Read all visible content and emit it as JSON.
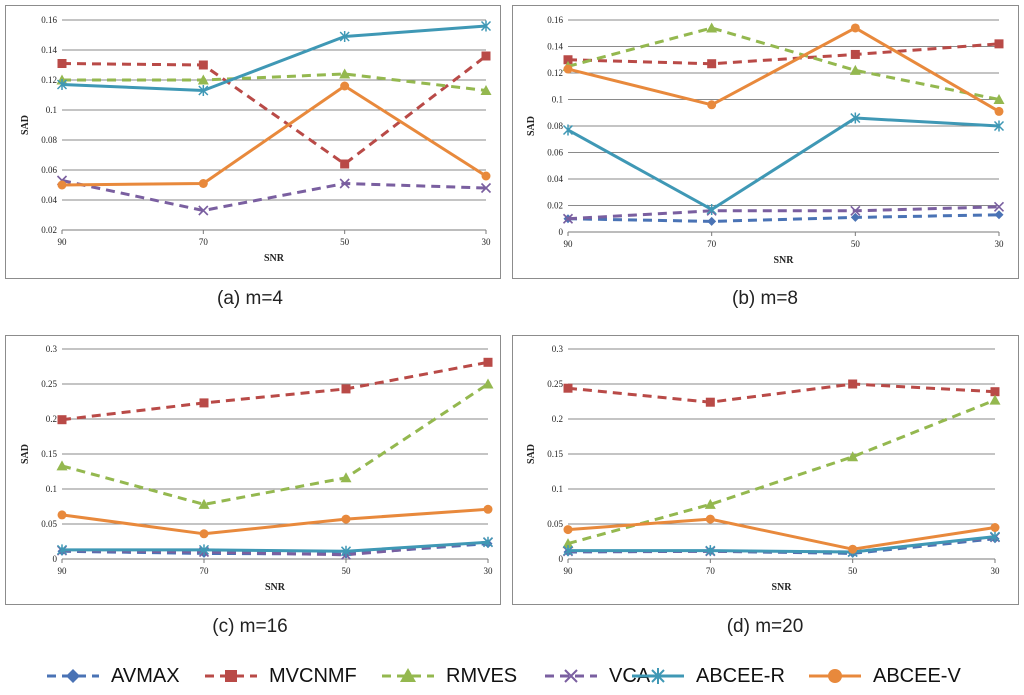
{
  "chart_data": [
    {
      "type": "line",
      "caption": "(a) m=4",
      "xlabel": "SNR",
      "ylabel": "SAD",
      "categories": [
        "90",
        "70",
        "50",
        "30"
      ],
      "ylim": [
        0.02,
        0.16
      ],
      "yticks": [
        "0.02",
        "0.04",
        "0.06",
        "0.08",
        "0.1",
        "0.12",
        "0.14",
        "0.16"
      ],
      "series": [
        {
          "name": "AVMAX",
          "values": [
            null,
            null,
            null,
            null
          ]
        },
        {
          "name": "MVCNMF",
          "values": [
            0.131,
            0.13,
            0.064,
            0.136
          ]
        },
        {
          "name": "RMVES",
          "values": [
            0.12,
            0.12,
            0.124,
            0.113
          ]
        },
        {
          "name": "VCA",
          "values": [
            0.053,
            0.033,
            0.051,
            0.048
          ]
        },
        {
          "name": "ABCEE-R",
          "values": [
            0.117,
            0.113,
            0.149,
            0.156
          ]
        },
        {
          "name": "ABCEE-V",
          "values": [
            0.05,
            0.051,
            0.116,
            0.056
          ]
        }
      ]
    },
    {
      "type": "line",
      "caption": "(b) m=8",
      "xlabel": "SNR",
      "ylabel": "SAD",
      "categories": [
        "90",
        "70",
        "50",
        "30"
      ],
      "ylim": [
        0,
        0.16
      ],
      "yticks": [
        "0",
        "0.02",
        "0.04",
        "0.06",
        "0.08",
        "0.1",
        "0.12",
        "0.14",
        "0.16"
      ],
      "series": [
        {
          "name": "AVMAX",
          "values": [
            0.01,
            0.008,
            0.011,
            0.013
          ]
        },
        {
          "name": "MVCNMF",
          "values": [
            0.13,
            0.127,
            0.134,
            0.142
          ]
        },
        {
          "name": "RMVES",
          "values": [
            0.125,
            0.154,
            0.122,
            0.1
          ]
        },
        {
          "name": "VCA",
          "values": [
            0.01,
            0.016,
            0.016,
            0.019
          ]
        },
        {
          "name": "ABCEE-R",
          "values": [
            0.077,
            0.017,
            0.086,
            0.08
          ]
        },
        {
          "name": "ABCEE-V",
          "values": [
            0.123,
            0.096,
            0.154,
            0.091
          ]
        }
      ]
    },
    {
      "type": "line",
      "caption": "(c) m=16",
      "xlabel": "SNR",
      "ylabel": "SAD",
      "categories": [
        "90",
        "70",
        "50",
        "30"
      ],
      "ylim": [
        0,
        0.3
      ],
      "yticks": [
        "0",
        "0.05",
        "0.1",
        "0.15",
        "0.2",
        "0.25",
        "0.3"
      ],
      "series": [
        {
          "name": "AVMAX",
          "values": [
            0.011,
            0.008,
            0.007,
            0.022
          ]
        },
        {
          "name": "MVCNMF",
          "values": [
            0.199,
            0.223,
            0.243,
            0.281
          ]
        },
        {
          "name": "RMVES",
          "values": [
            0.133,
            0.078,
            0.116,
            0.25
          ]
        },
        {
          "name": "VCA",
          "values": [
            0.012,
            0.01,
            0.006,
            0.024
          ]
        },
        {
          "name": "ABCEE-R",
          "values": [
            0.013,
            0.013,
            0.011,
            0.024
          ]
        },
        {
          "name": "ABCEE-V",
          "values": [
            0.063,
            0.036,
            0.057,
            0.071
          ]
        }
      ]
    },
    {
      "type": "line",
      "caption": "(d) m=20",
      "xlabel": "SNR",
      "ylabel": "SAD",
      "categories": [
        "90",
        "70",
        "50",
        "30"
      ],
      "ylim": [
        0,
        0.3
      ],
      "yticks": [
        "0",
        "0.05",
        "0.1",
        "0.15",
        "0.2",
        "0.25",
        "0.3"
      ],
      "series": [
        {
          "name": "AVMAX",
          "values": [
            0.01,
            0.011,
            0.008,
            0.029
          ]
        },
        {
          "name": "MVCNMF",
          "values": [
            0.244,
            0.224,
            0.25,
            0.239
          ]
        },
        {
          "name": "RMVES",
          "values": [
            0.022,
            0.078,
            0.146,
            0.227
          ]
        },
        {
          "name": "VCA",
          "values": [
            0.011,
            0.011,
            0.01,
            0.031
          ]
        },
        {
          "name": "ABCEE-R",
          "values": [
            0.012,
            0.012,
            0.01,
            0.032
          ]
        },
        {
          "name": "ABCEE-V",
          "values": [
            0.042,
            0.057,
            0.014,
            0.045
          ]
        }
      ]
    }
  ],
  "legend": {
    "placement": "bottom",
    "entries": [
      {
        "name": "AVMAX",
        "color": "#4a73b5",
        "marker": "diamond",
        "dash": true
      },
      {
        "name": "MVCNMF",
        "color": "#b94a47",
        "marker": "square",
        "dash": true
      },
      {
        "name": "RMVES",
        "color": "#94b84f",
        "marker": "triangle",
        "dash": true
      },
      {
        "name": "VCA",
        "color": "#7a5fa0",
        "marker": "x",
        "dash": true
      },
      {
        "name": "ABCEE-R",
        "color": "#3f98b5",
        "marker": "star",
        "dash": false
      },
      {
        "name": "ABCEE-V",
        "color": "#e8893c",
        "marker": "circle",
        "dash": false
      }
    ]
  }
}
